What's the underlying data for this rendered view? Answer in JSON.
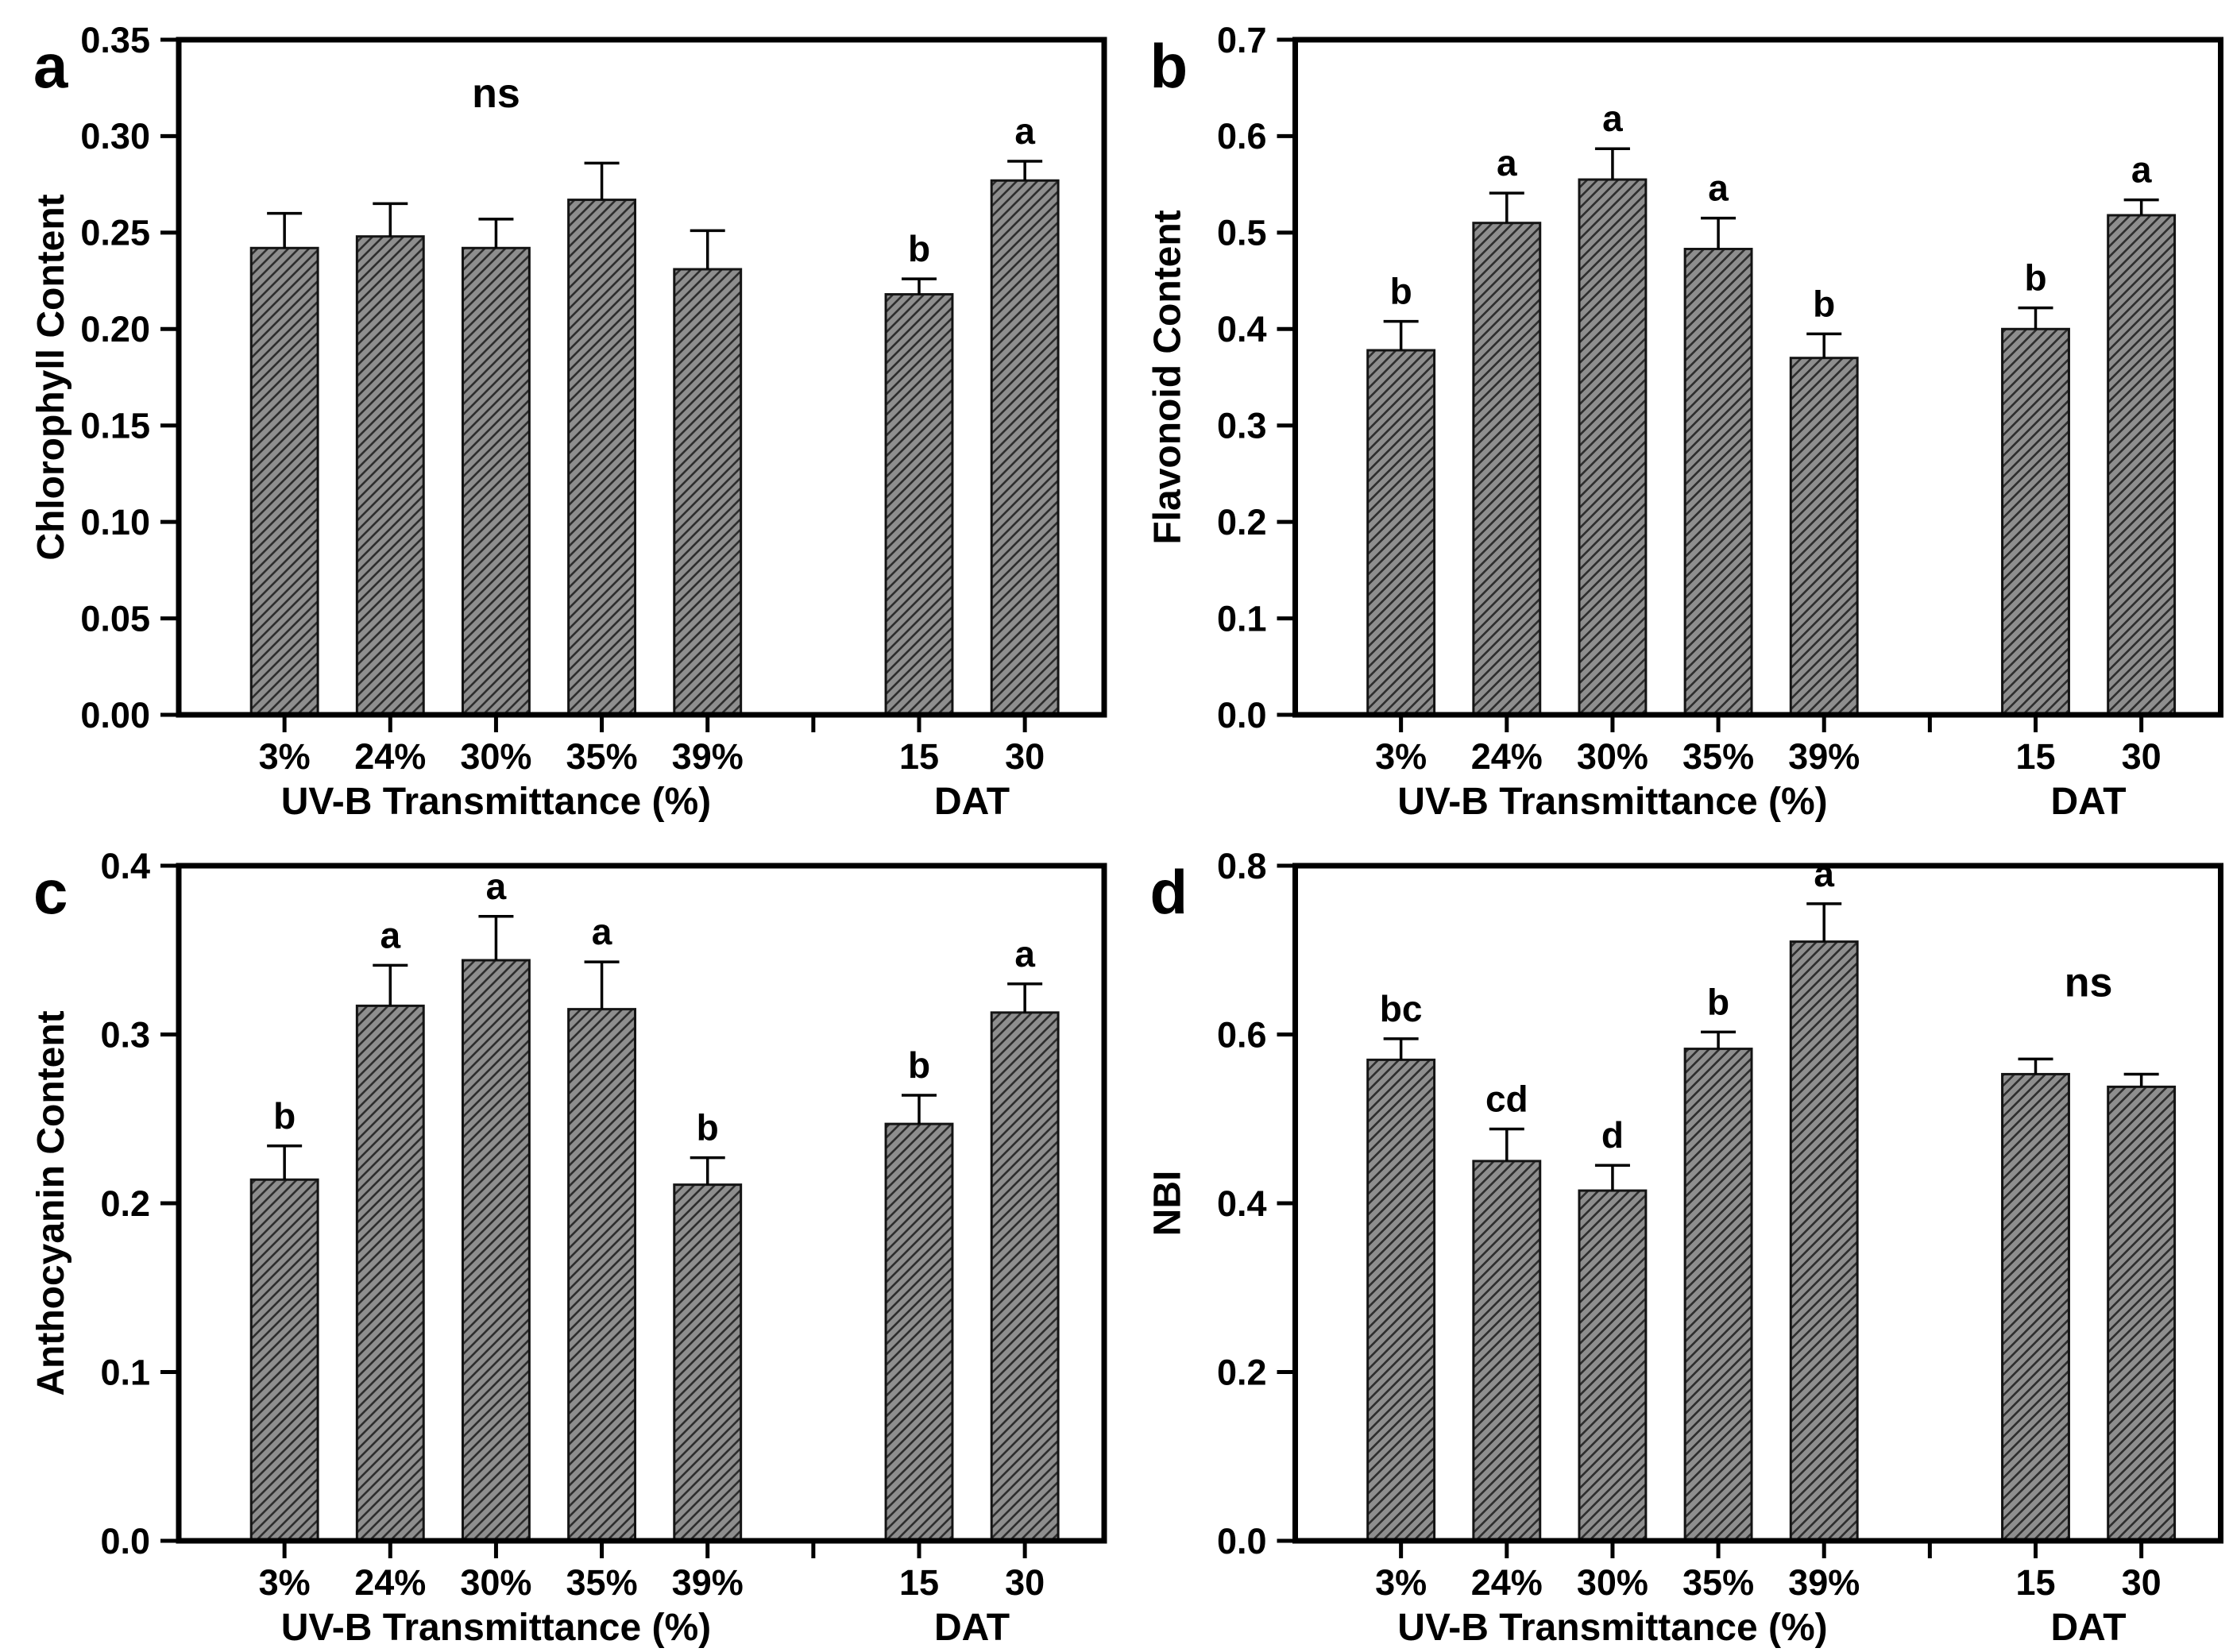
{
  "figure": {
    "background": "#ffffff",
    "colors": {
      "bar_fill": "#8e8e8e",
      "bar_hatch": "#2d2d2d",
      "bar_edge": "#141414",
      "axis": "#000000",
      "text": "#000000"
    }
  },
  "chart_data": [
    {
      "type": "bar",
      "panel_label": "a",
      "ylabel": "Chlorophyll Content",
      "ylim": [
        0,
        0.35
      ],
      "ytick_step": 0.05,
      "ytick_decimals": 2,
      "x_groups": [
        {
          "title": "UV-B Transmittance (%)",
          "categories": [
            "3%",
            "24%",
            "30%",
            "35%",
            "39%"
          ]
        },
        {
          "title": "DAT",
          "categories": [
            "15",
            "30"
          ]
        }
      ],
      "values": [
        0.242,
        0.248,
        0.242,
        0.267,
        0.231,
        0.218,
        0.277
      ],
      "errors": [
        0.018,
        0.017,
        0.015,
        0.019,
        0.02,
        0.008,
        0.01
      ],
      "sig_letters": [
        "",
        "",
        "",
        "",
        "",
        "b",
        "a"
      ],
      "annotations": [
        {
          "text": "ns",
          "anchor_categories": [
            "30%"
          ],
          "y_value": 0.315
        }
      ]
    },
    {
      "type": "bar",
      "panel_label": "b",
      "ylabel": "Flavonoid Content",
      "ylim": [
        0,
        0.7
      ],
      "ytick_step": 0.1,
      "ytick_decimals": 1,
      "x_groups": [
        {
          "title": "UV-B Transmittance (%)",
          "categories": [
            "3%",
            "24%",
            "30%",
            "35%",
            "39%"
          ]
        },
        {
          "title": "DAT",
          "categories": [
            "15",
            "30"
          ]
        }
      ],
      "values": [
        0.378,
        0.51,
        0.555,
        0.483,
        0.37,
        0.4,
        0.518
      ],
      "errors": [
        0.03,
        0.031,
        0.032,
        0.032,
        0.025,
        0.022,
        0.016
      ],
      "sig_letters": [
        "b",
        "a",
        "a",
        "a",
        "b",
        "b",
        "a"
      ],
      "annotations": []
    },
    {
      "type": "bar",
      "panel_label": "c",
      "ylabel": "Anthocyanin Content",
      "ylim": [
        0,
        0.4
      ],
      "ytick_step": 0.1,
      "ytick_decimals": 1,
      "x_groups": [
        {
          "title": "UV-B Transmittance (%)",
          "categories": [
            "3%",
            "24%",
            "30%",
            "35%",
            "39%"
          ]
        },
        {
          "title": "DAT",
          "categories": [
            "15",
            "30"
          ]
        }
      ],
      "values": [
        0.214,
        0.317,
        0.344,
        0.315,
        0.211,
        0.247,
        0.313
      ],
      "errors": [
        0.02,
        0.024,
        0.026,
        0.028,
        0.016,
        0.017,
        0.017
      ],
      "sig_letters": [
        "b",
        "a",
        "a",
        "a",
        "b",
        "b",
        "a"
      ],
      "annotations": []
    },
    {
      "type": "bar",
      "panel_label": "d",
      "ylabel": "NBI",
      "ylim": [
        0,
        0.8
      ],
      "ytick_step": 0.2,
      "ytick_decimals": 1,
      "x_groups": [
        {
          "title": "UV-B Transmittance (%)",
          "categories": [
            "3%",
            "24%",
            "30%",
            "35%",
            "39%"
          ]
        },
        {
          "title": "DAT",
          "categories": [
            "15",
            "30"
          ]
        }
      ],
      "values": [
        0.57,
        0.45,
        0.415,
        0.583,
        0.71,
        0.553,
        0.538
      ],
      "errors": [
        0.025,
        0.038,
        0.03,
        0.02,
        0.045,
        0.018,
        0.015
      ],
      "sig_letters": [
        "bc",
        "cd",
        "d",
        "b",
        "a",
        "",
        ""
      ],
      "annotations": [
        {
          "text": "ns",
          "anchor_categories": [
            "15",
            "30"
          ],
          "y_value": 0.645
        }
      ]
    }
  ]
}
